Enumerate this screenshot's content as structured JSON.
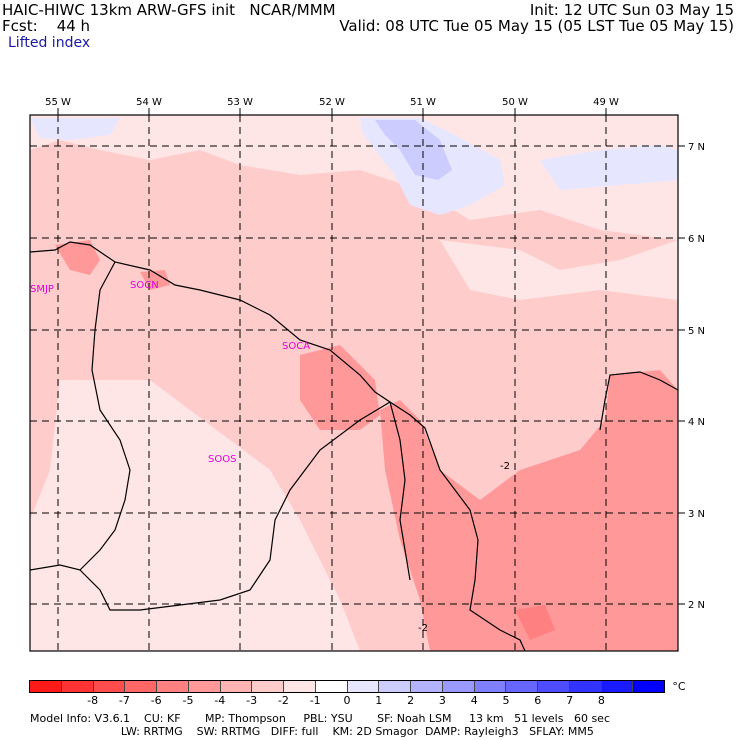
{
  "header": {
    "title_line": "HAIC-HIWC 13km ARW-GFS init   NCAR/MMM",
    "fcst_line": "Fcst:    44 h",
    "init_line": "Init: 12 UTC Sun 03 May 15",
    "valid_line": "Valid: 08 UTC Tue 05 May 15 (05 LST Tue 05 May 15)",
    "field_name": "Lifted index"
  },
  "map": {
    "lon_labels": [
      "55 W",
      "54 W",
      "53 W",
      "52 W",
      "51 W",
      "50 W",
      "49 W"
    ],
    "lat_labels": [
      "7 N",
      "6 N",
      "5 N",
      "4 N",
      "3 N",
      "2 N"
    ],
    "stations": [
      "SMJP",
      "SOCN",
      "SOCA",
      "SOOS"
    ],
    "contour_labels": [
      "-2",
      "-2"
    ]
  },
  "colorbar": {
    "colors": [
      "#ff1a1a",
      "#ff3333",
      "#ff4d4d",
      "#ff6666",
      "#ff8080",
      "#ff9999",
      "#ffb3b3",
      "#ffcccc",
      "#ffe6e6",
      "#ffffff",
      "#e6e6ff",
      "#ccccff",
      "#b3b3ff",
      "#9999ff",
      "#8080ff",
      "#6666ff",
      "#4d4dff",
      "#3333ff",
      "#1a1aff",
      "#0000ff"
    ],
    "labels": [
      "-8",
      "-7",
      "-6",
      "-5",
      "-4",
      "-3",
      "-2",
      "-1",
      "0",
      "1",
      "2",
      "3",
      "4",
      "5",
      "6",
      "7",
      "8"
    ],
    "unit": "°C"
  },
  "footer": {
    "line1": "Model Info: V3.6.1    CU: KF       MP: Thompson     PBL: YSU       SF: Noah LSM     13 km   51 levels   60 sec",
    "line2": "                          LW: RRTMG    SW: RRTMG   DIFF: full    KM: 2D Smagor  DAMP: Rayleigh3   SFLAY: MM5"
  }
}
